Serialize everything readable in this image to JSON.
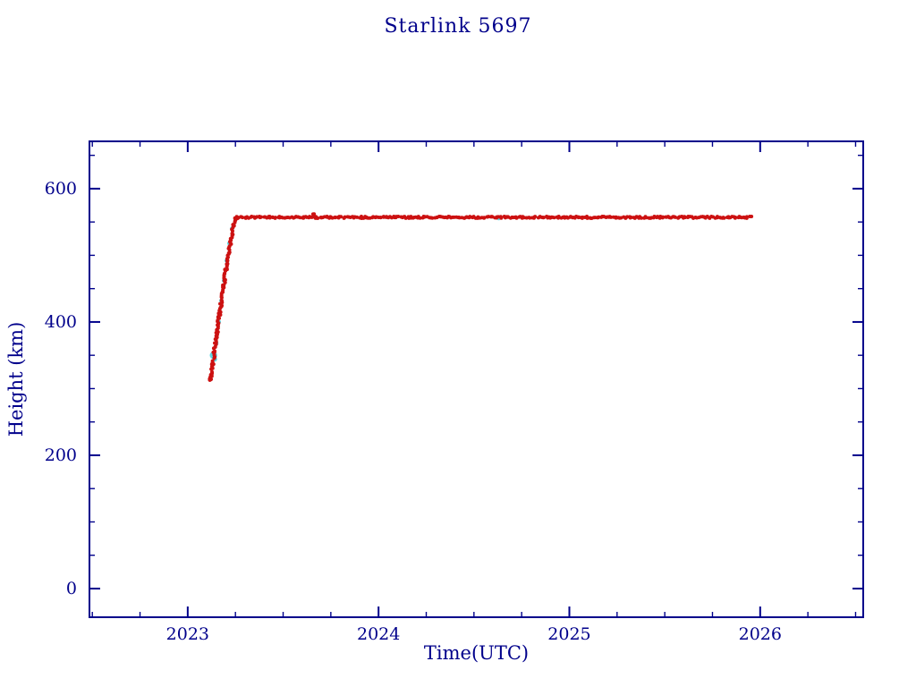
{
  "chart_data": {
    "type": "scatter",
    "title": "Starlink 5697",
    "xlabel": "Time(UTC)",
    "ylabel": "Height (km)",
    "xlim": [
      2022.485,
      2026.54
    ],
    "ylim": [
      -43,
      671
    ],
    "xticks": [
      2023,
      2024,
      2025,
      2026
    ],
    "yticks": [
      0,
      200,
      400,
      600
    ],
    "x_minor_step": 0.25,
    "y_minor_step": 50,
    "grid": false,
    "legend": "none",
    "axis_color": "#00008b",
    "background": "#ffffff",
    "series": [
      {
        "name": "secondary-track-cyan",
        "color": "#5fd8e4",
        "marker_radius": 2.4,
        "points": [
          [
            2023.135,
            350,
            4.2
          ],
          [
            2023.142,
            344,
            2.6
          ],
          [
            2023.15,
            368,
            2.4
          ],
          [
            2023.163,
            400,
            2.4
          ],
          [
            2023.176,
            432,
            2.4
          ],
          [
            2023.19,
            462,
            2.4
          ],
          [
            2023.204,
            492,
            2.4
          ],
          [
            2023.218,
            518,
            2.4
          ],
          [
            2023.232,
            540,
            2.4
          ],
          [
            2024.63,
            556,
            2.6
          ]
        ]
      },
      {
        "name": "height-track-red",
        "color": "#cc1111",
        "marker_radius": 2.0,
        "jitter_x": 1.2,
        "jitter_y": 1.0,
        "path_point_spacing_px": 1.6,
        "points": [
          [
            2023.116,
            313,
            2.2
          ],
          [
            2023.119,
            317,
            2.2
          ],
          [
            2023.122,
            314,
            2.2
          ],
          [
            2023.125,
            321,
            2.2
          ]
        ],
        "path": [
          [
            2023.115,
            316
          ],
          [
            2023.123,
            320
          ],
          [
            2023.13,
            336
          ],
          [
            2023.16,
            398
          ],
          [
            2023.2,
            478
          ],
          [
            2023.24,
            546
          ],
          [
            2023.252,
            555
          ],
          [
            2023.262,
            557
          ],
          [
            2023.65,
            557
          ],
          [
            2023.662,
            561
          ],
          [
            2023.672,
            557
          ],
          [
            2025.95,
            557
          ]
        ]
      }
    ]
  }
}
